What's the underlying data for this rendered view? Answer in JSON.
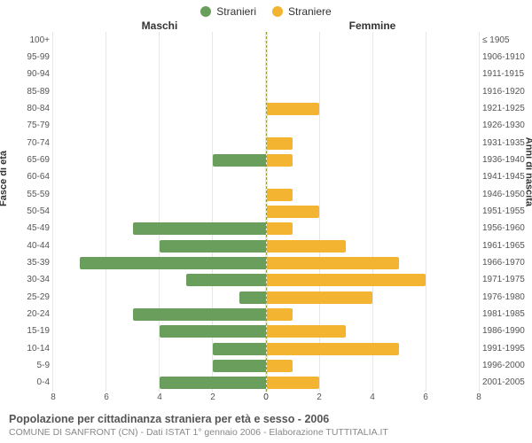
{
  "legend": {
    "male": {
      "label": "Stranieri",
      "color": "#6a9e5c"
    },
    "female": {
      "label": "Straniere",
      "color": "#f2b431"
    }
  },
  "headers": {
    "left": "Maschi",
    "right": "Femmine"
  },
  "axis_titles": {
    "left": "Fasce di età",
    "right": "Anni di nascita"
  },
  "caption": {
    "title": "Popolazione per cittadinanza straniera per età e sesso - 2006",
    "subtitle": "COMUNE DI SANFRONT (CN) - Dati ISTAT 1° gennaio 2006 - Elaborazione TUTTITALIA.IT"
  },
  "chart": {
    "type": "population-pyramid",
    "xmax": 8,
    "xticks": [
      0,
      2,
      4,
      6,
      8
    ],
    "grid_color": "#e6e6e6",
    "center_line_color": "#999933",
    "background_color": "#ffffff",
    "label_fontsize": 10,
    "header_fontsize": 12,
    "rows": [
      {
        "age": "100+",
        "birth": "≤ 1905",
        "m": 0,
        "f": 0
      },
      {
        "age": "95-99",
        "birth": "1906-1910",
        "m": 0,
        "f": 0
      },
      {
        "age": "90-94",
        "birth": "1911-1915",
        "m": 0,
        "f": 0
      },
      {
        "age": "85-89",
        "birth": "1916-1920",
        "m": 0,
        "f": 0
      },
      {
        "age": "80-84",
        "birth": "1921-1925",
        "m": 0,
        "f": 2
      },
      {
        "age": "75-79",
        "birth": "1926-1930",
        "m": 0,
        "f": 0
      },
      {
        "age": "70-74",
        "birth": "1931-1935",
        "m": 0,
        "f": 1
      },
      {
        "age": "65-69",
        "birth": "1936-1940",
        "m": 2,
        "f": 1
      },
      {
        "age": "60-64",
        "birth": "1941-1945",
        "m": 0,
        "f": 0
      },
      {
        "age": "55-59",
        "birth": "1946-1950",
        "m": 0,
        "f": 1
      },
      {
        "age": "50-54",
        "birth": "1951-1955",
        "m": 0,
        "f": 2
      },
      {
        "age": "45-49",
        "birth": "1956-1960",
        "m": 5,
        "f": 1
      },
      {
        "age": "40-44",
        "birth": "1961-1965",
        "m": 4,
        "f": 3
      },
      {
        "age": "35-39",
        "birth": "1966-1970",
        "m": 7,
        "f": 5
      },
      {
        "age": "30-34",
        "birth": "1971-1975",
        "m": 3,
        "f": 6
      },
      {
        "age": "25-29",
        "birth": "1976-1980",
        "m": 1,
        "f": 4
      },
      {
        "age": "20-24",
        "birth": "1981-1985",
        "m": 5,
        "f": 1
      },
      {
        "age": "15-19",
        "birth": "1986-1990",
        "m": 4,
        "f": 3
      },
      {
        "age": "10-14",
        "birth": "1991-1995",
        "m": 2,
        "f": 5
      },
      {
        "age": "5-9",
        "birth": "1996-2000",
        "m": 2,
        "f": 1
      },
      {
        "age": "0-4",
        "birth": "2001-2005",
        "m": 4,
        "f": 2
      }
    ]
  }
}
